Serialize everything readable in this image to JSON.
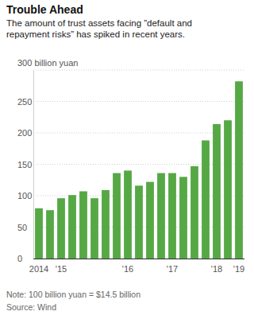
{
  "chart_data": {
    "type": "bar",
    "title": "Trouble Ahead",
    "subtitle": "The amount of trust assets facing ”default and repayment risks” has spiked in recent years.",
    "categories": [
      "2014",
      null,
      "'15",
      null,
      null,
      null,
      null,
      null,
      "'16",
      null,
      null,
      null,
      "'17",
      null,
      null,
      null,
      "'18",
      null,
      "'19"
    ],
    "values": [
      80,
      77,
      96,
      101,
      107,
      96,
      109,
      136,
      140,
      116,
      122,
      136,
      136,
      130,
      147,
      188,
      214,
      220,
      282
    ],
    "color": "#56a845",
    "ylim": [
      0,
      300
    ],
    "yticks": [
      0,
      50,
      100,
      150,
      200,
      250,
      {
        "value": 300,
        "label": "300 billion yuan"
      }
    ],
    "grid": true,
    "note": "Note: 100 billion yuan = $14.5 billion",
    "source": "Source: Wind"
  }
}
